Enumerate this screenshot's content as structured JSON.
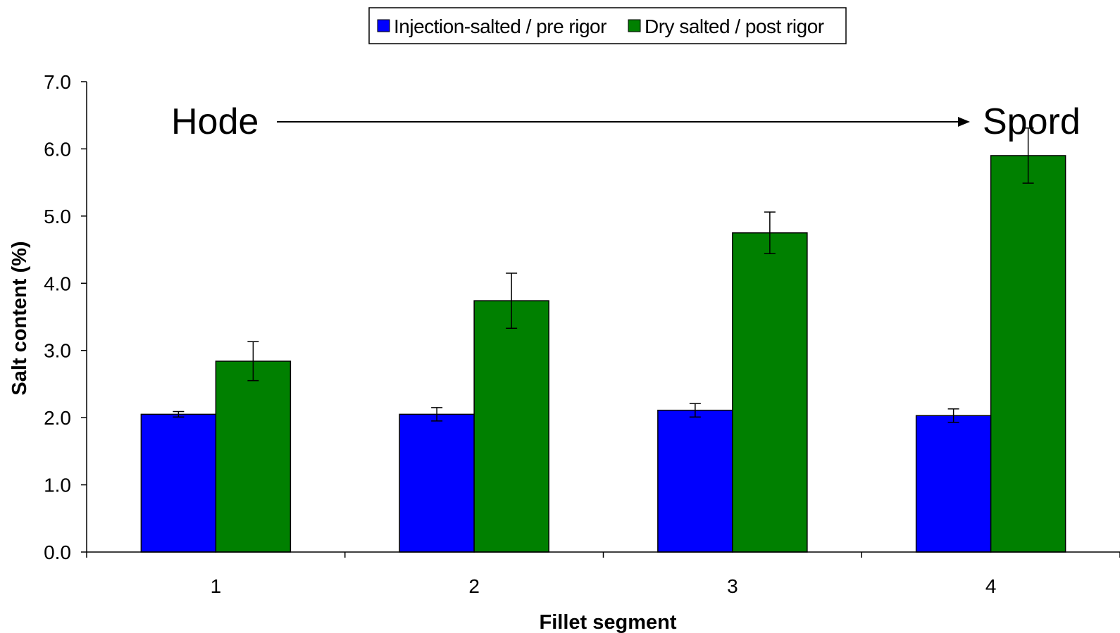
{
  "chart_data": {
    "type": "bar",
    "xlabel": "Fillet segment",
    "ylabel": "Salt content (%)",
    "categories": [
      "1",
      "2",
      "3",
      "4"
    ],
    "ylim": [
      0,
      7
    ],
    "yticks": [
      "0.0",
      "1.0",
      "2.0",
      "3.0",
      "4.0",
      "5.0",
      "6.0",
      "7.0"
    ],
    "series": [
      {
        "name": "Injection-salted / pre rigor",
        "color": "#0000ff",
        "values": [
          2.05,
          2.05,
          2.11,
          2.03
        ],
        "errors": [
          0.04,
          0.1,
          0.1,
          0.1
        ]
      },
      {
        "name": "Dry salted / post rigor",
        "color": "#008000",
        "values": [
          2.84,
          3.74,
          4.75,
          5.9
        ],
        "errors": [
          0.29,
          0.41,
          0.31,
          0.41
        ]
      }
    ],
    "grid": false,
    "legend_position": "top-center",
    "annotations": {
      "left": "Hode",
      "right": "Spord"
    }
  }
}
